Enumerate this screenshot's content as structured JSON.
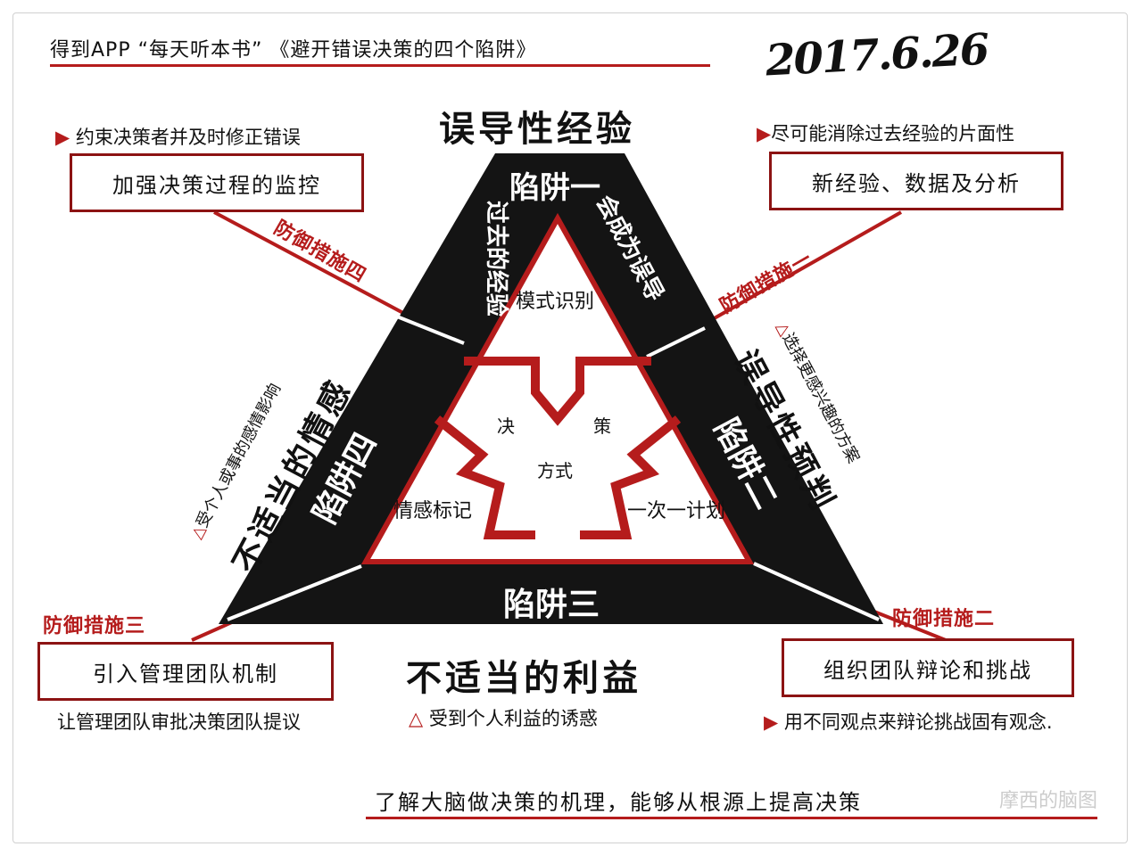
{
  "header": {
    "title": "得到APP  “每天听本书” 《避开错误决策的四个陷阱》",
    "date": "2017.6.26"
  },
  "top": {
    "heading": "误导性经验",
    "trap_label": "陷阱一",
    "trap_desc_left": "过去的经验",
    "trap_desc_right": "会成为误导"
  },
  "left": {
    "heading": "不适当的情感",
    "trap_label": "陷阱四",
    "note": "受个人或事的感情影响"
  },
  "right": {
    "heading": "误导性预判",
    "trap_label": "陷阱二",
    "note": "选择更感兴趣的方案"
  },
  "bottom": {
    "heading": "不适当的利益",
    "trap_label": "陷阱三",
    "note": "受到个人利益的诱惑"
  },
  "inner": {
    "top": "模式识别",
    "left": "情感标记",
    "right": "一次一计划",
    "center_top_left": "决",
    "center_top_right": "策",
    "center_bottom": "方式"
  },
  "defenses": [
    {
      "label": "防御措施一",
      "box": "新经验、数据及分析",
      "note": "尽可能消除过去经验的片面性"
    },
    {
      "label": "防御措施二",
      "box": "组织团队辩论和挑战",
      "note": "用不同观点来辩论挑战固有观念."
    },
    {
      "label": "防御措施三",
      "box": "引入管理团队机制",
      "note": "让管理团队审批决策团队提议"
    },
    {
      "label": "防御措施四",
      "box": "加强决策过程的监控",
      "note": "约束决策者并及时修正错误"
    }
  ],
  "footer": {
    "text": "了解大脑做决策的机理，能够从根源上提高决策",
    "watermark": "摩西的脑图"
  },
  "colors": {
    "accent": "#b51c1c",
    "dark": "#111111",
    "box_border": "#8c1313"
  }
}
